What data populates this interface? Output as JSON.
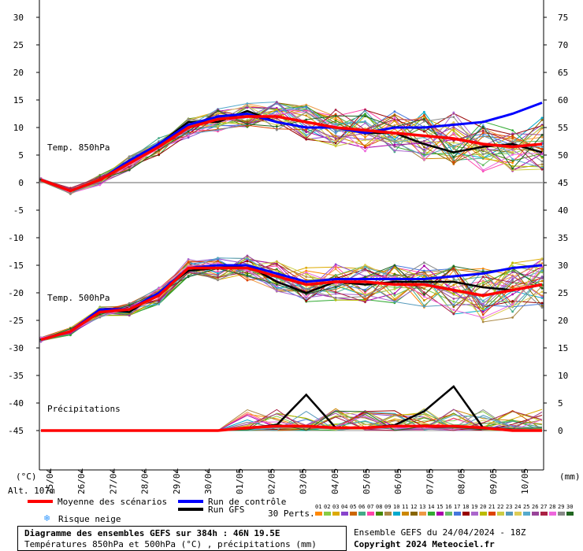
{
  "chart_data": {
    "type": "line",
    "title": "Diagramme des ensembles GEFS sur 384h : 46N 19.5E",
    "subtitle": "Températures 850hPa et 500hPa (°C) , précipitations (mm)",
    "run_info": "Ensemble GEFS du 24/04/2024 - 18Z",
    "copyright": "Copyright 2024 Meteociel.fr",
    "altitude": "Alt. 107m",
    "left_axis": {
      "unit": "(°C)",
      "ticks": [
        30,
        25,
        20,
        15,
        10,
        5,
        0,
        -5,
        -10,
        -15,
        -20,
        -25,
        -30,
        -35,
        -40,
        -45
      ]
    },
    "right_axis": {
      "unit": "(mm)",
      "ticks": [
        75,
        70,
        65,
        60,
        55,
        50,
        45,
        40,
        35,
        30,
        25,
        20,
        15,
        10,
        5,
        0
      ]
    },
    "dates": [
      "25/04",
      "26/04",
      "27/04",
      "28/04",
      "29/04",
      "30/04",
      "01/05",
      "02/05",
      "03/05",
      "04/05",
      "05/05",
      "06/05",
      "07/05",
      "08/05",
      "09/05",
      "10/05"
    ],
    "section_labels": {
      "t850": "Temp. 850hPa",
      "t500": "Temp. 500hPa",
      "precip": "Précipitations"
    },
    "t850": {
      "mean": [
        0.5,
        -1.5,
        0.5,
        3.5,
        6.5,
        10.0,
        11.5,
        12.0,
        12.0,
        11.0,
        10.0,
        9.5,
        9.0,
        8.5,
        8.0,
        7.0,
        6.5,
        7.0
      ],
      "control": [
        0.5,
        -1.5,
        0.5,
        4.0,
        7.0,
        10.5,
        12.0,
        12.5,
        11.0,
        10.0,
        10.0,
        9.0,
        10.0,
        10.0,
        10.5,
        11.0,
        12.5,
        14.5
      ],
      "gfs": [
        0.5,
        -1.5,
        0.5,
        4.0,
        7.0,
        11.0,
        11.0,
        13.0,
        11.0,
        10.0,
        10.0,
        9.0,
        9.0,
        7.0,
        5.5,
        6.5,
        7.0,
        5.5
      ]
    },
    "t500": {
      "mean": [
        -28.5,
        -27.0,
        -23.5,
        -23.0,
        -20.5,
        -15.5,
        -15.5,
        -15.5,
        -17.0,
        -18.5,
        -18.0,
        -18.0,
        -18.5,
        -18.5,
        -19.5,
        -20.5,
        -19.5,
        -18.5
      ],
      "control": [
        -28.5,
        -27.0,
        -23.0,
        -23.0,
        -20.0,
        -15.5,
        -15.0,
        -15.0,
        -16.5,
        -18.0,
        -17.5,
        -17.5,
        -17.5,
        -17.5,
        -17.0,
        -16.5,
        -15.5,
        -15.0
      ],
      "gfs": [
        -28.5,
        -27.0,
        -23.0,
        -23.5,
        -20.0,
        -16.0,
        -15.5,
        -15.0,
        -18.0,
        -20.0,
        -18.0,
        -18.5,
        -18.0,
        -18.0,
        -18.0,
        -19.0,
        -19.5,
        -18.5
      ]
    },
    "precip_gfs": [
      0,
      0,
      0,
      0,
      0,
      0,
      0,
      0.5,
      1.0,
      6.5,
      0.5,
      0.5,
      1.0,
      3.5,
      8.0,
      0.5,
      0,
      0
    ],
    "legend": {
      "mean": "Moyenne des scénarios",
      "control": "Run de contrôle",
      "gfs": "Run GFS",
      "snow": "Risque neige",
      "perts_title": "30 Perts.",
      "perts": [
        "01",
        "02",
        "03",
        "04",
        "05",
        "06",
        "07",
        "08",
        "09",
        "10",
        "11",
        "12",
        "13",
        "14",
        "15",
        "16",
        "17",
        "18",
        "19",
        "20",
        "21",
        "22",
        "23",
        "24",
        "25",
        "26",
        "27",
        "28",
        "29",
        "30"
      ]
    },
    "colors": {
      "mean": "#ff0000",
      "control": "#0000ff",
      "gfs": "#000000",
      "snow": "#3399ff",
      "members": [
        "#ff8800",
        "#88cc44",
        "#ddaa00",
        "#8844cc",
        "#cc6600",
        "#44aa88",
        "#ff44aa",
        "#448800",
        "#aa8844",
        "#00aacc",
        "#cc8800",
        "#886600",
        "#ee9944",
        "#33aa33",
        "#aa00aa",
        "#66bb66",
        "#4477dd",
        "#990000",
        "#aa66cc",
        "#bbbb00",
        "#dd4400",
        "#cccc44",
        "#5599bb",
        "#ddcc55",
        "#55aacc",
        "#994499",
        "#aa2244",
        "#ee66dd",
        "#888888",
        "#226622"
      ]
    }
  }
}
